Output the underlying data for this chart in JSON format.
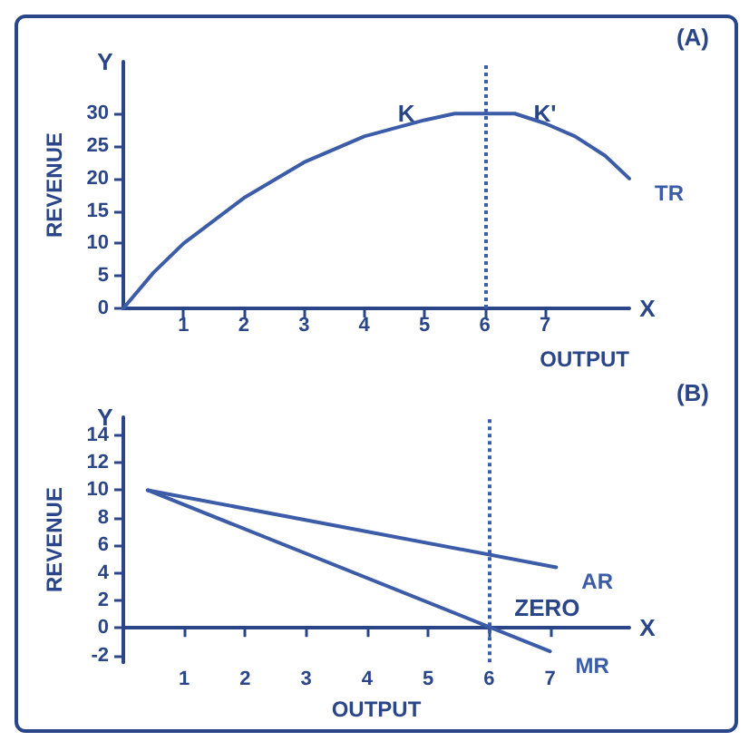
{
  "chart_data": [
    {
      "type": "line",
      "xlabel": "OUTPUT",
      "ylabel": "REVENUE",
      "xlim": [
        0,
        8.4
      ],
      "ylim": [
        0,
        38
      ],
      "xticks": [
        1,
        2,
        3,
        4,
        5,
        6,
        7
      ],
      "yticks": [
        0,
        5,
        10,
        15,
        20,
        25,
        30
      ],
      "grid": false,
      "legend": false,
      "marker": "none",
      "series": [
        {
          "name": "TR",
          "color": "#3c5ca8",
          "x": [
            0,
            0.5,
            1,
            2,
            3,
            4,
            5,
            5.5,
            6,
            6.5,
            7,
            7.5,
            8,
            8.4
          ],
          "values": [
            0,
            5.5,
            10,
            17,
            22.5,
            26.5,
            29,
            30,
            30,
            30,
            28.5,
            26.5,
            23.5,
            20
          ]
        }
      ],
      "ref_lines": [
        {
          "axis": "x",
          "value": 6,
          "line_style": "dotted",
          "color": "#3c5ca8"
        }
      ],
      "annotations": [
        "(A)",
        "Y",
        "X",
        {
          "text": "K",
          "x": 4.7,
          "y": 30
        },
        {
          "text": "K'",
          "x": 7.0,
          "y": 30
        }
      ]
    },
    {
      "type": "line",
      "xlabel": "OUTPUT",
      "ylabel": "REVENUE",
      "xlim": [
        0,
        8.3
      ],
      "ylim": [
        -2.5,
        15.3
      ],
      "xticks": [
        1,
        2,
        3,
        4,
        5,
        6,
        7
      ],
      "yticks": [
        -2,
        0,
        2,
        4,
        6,
        8,
        10,
        12,
        14
      ],
      "grid": false,
      "legend": false,
      "marker": "none",
      "series": [
        {
          "name": "AR",
          "color": "#3c5ca8",
          "x": [
            0.4,
            7.1
          ],
          "values": [
            10,
            4.4
          ]
        },
        {
          "name": "MR",
          "color": "#3c5ca8",
          "x": [
            0.4,
            7.0
          ],
          "values": [
            10,
            -1.7
          ]
        }
      ],
      "ref_lines": [
        {
          "axis": "x",
          "value": 6,
          "line_style": "dotted",
          "color": "#3c5ca8"
        }
      ],
      "annotations": [
        "(B)",
        "Y",
        "X",
        {
          "text": "ZERO",
          "x": 6,
          "y": 0
        }
      ]
    }
  ]
}
